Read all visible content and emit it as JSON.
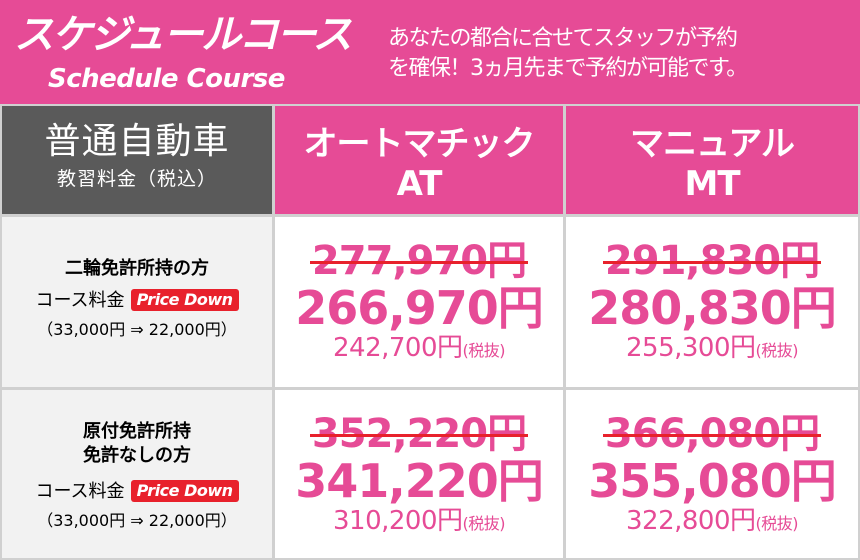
{
  "header": {
    "title_jp": "スケジュールコース",
    "title_en": "Schedule Course",
    "description_line1": "あなたの都合に合せてスタッフが予約",
    "description_line2": "を確保！3ヵ月先まで予約が可能です。"
  },
  "table": {
    "corner_title": "普通自動車",
    "corner_subtitle": "教習料金（税込）",
    "at_header_line1": "オートマチック",
    "at_header_line2": "AT",
    "mt_header_line1": "マニュアル",
    "mt_header_line2": "MT",
    "rows": [
      {
        "condition_line1": "二輪免許所持の方",
        "condition_line2": "",
        "fee_label": "コース料金",
        "badge": "Price Down",
        "fee_change": "（33,000円 ⇒ 22,000円）",
        "at_old": "277,970円",
        "at_new": "266,970円",
        "at_net": "242,700円",
        "mt_old": "291,830円",
        "mt_new": "280,830円",
        "mt_net": "255,300円",
        "tax_note": "(税抜)"
      },
      {
        "condition_line1": "原付免許所持",
        "condition_line2": "免許なしの方",
        "fee_label": "コース料金",
        "badge": "Price Down",
        "fee_change": "（33,000円 ⇒ 22,000円）",
        "at_old": "352,220円",
        "at_new": "341,220円",
        "at_net": "310,200円",
        "mt_old": "366,080円",
        "mt_new": "355,080円",
        "mt_net": "322,800円",
        "tax_note": "(税抜)"
      }
    ]
  },
  "colors": {
    "brand_pink": "#e64b96",
    "header_gray": "#5a5a5a",
    "strike_red": "#e8212c",
    "badge_red": "#e8212c"
  }
}
